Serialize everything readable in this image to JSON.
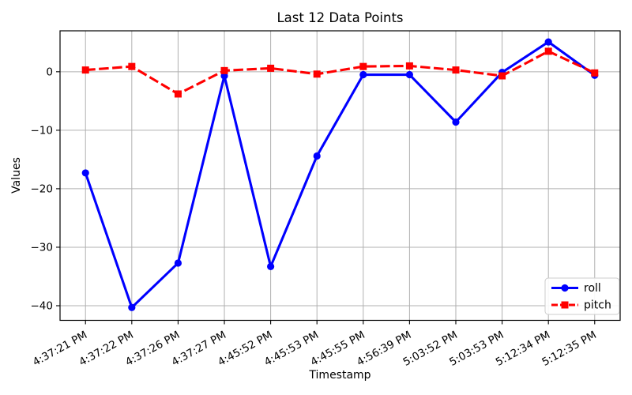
{
  "chart_data": {
    "type": "line",
    "title": "Last 12 Data Points",
    "xlabel": "Timestamp",
    "ylabel": "Values",
    "x": [
      "4:37:21 PM",
      "4:37:22 PM",
      "4:37:26 PM",
      "4:37:27 PM",
      "4:45:52 PM",
      "4:45:53 PM",
      "4:45:55 PM",
      "4:56:39 PM",
      "5:03:52 PM",
      "5:03:53 PM",
      "5:12:34 PM",
      "5:12:35 PM"
    ],
    "series": [
      {
        "name": "roll",
        "color": "#0000ff",
        "marker": "circle",
        "line_style": "solid",
        "values": [
          -17.3,
          -40.3,
          -32.7,
          -0.7,
          -33.3,
          -14.4,
          -0.5,
          -0.5,
          -8.6,
          -0.1,
          5.1,
          -0.6
        ]
      },
      {
        "name": "pitch",
        "color": "#ff0000",
        "marker": "square",
        "line_style": "dashed",
        "values": [
          0.3,
          0.9,
          -3.8,
          0.2,
          0.6,
          -0.4,
          0.9,
          1.0,
          0.3,
          -0.7,
          3.5,
          -0.2
        ]
      }
    ],
    "yticks": {
      "values": [
        0,
        -10,
        -20,
        -30,
        -40
      ],
      "labels": [
        "0",
        "−10",
        "−20",
        "−30",
        "−40"
      ]
    },
    "ylim": [
      -42.5,
      7.0
    ],
    "grid": true,
    "grid_color": "#b0b0b0",
    "axis_color": "#000000",
    "legend_position": "lower right",
    "x_tick_rotation_deg": 29
  }
}
